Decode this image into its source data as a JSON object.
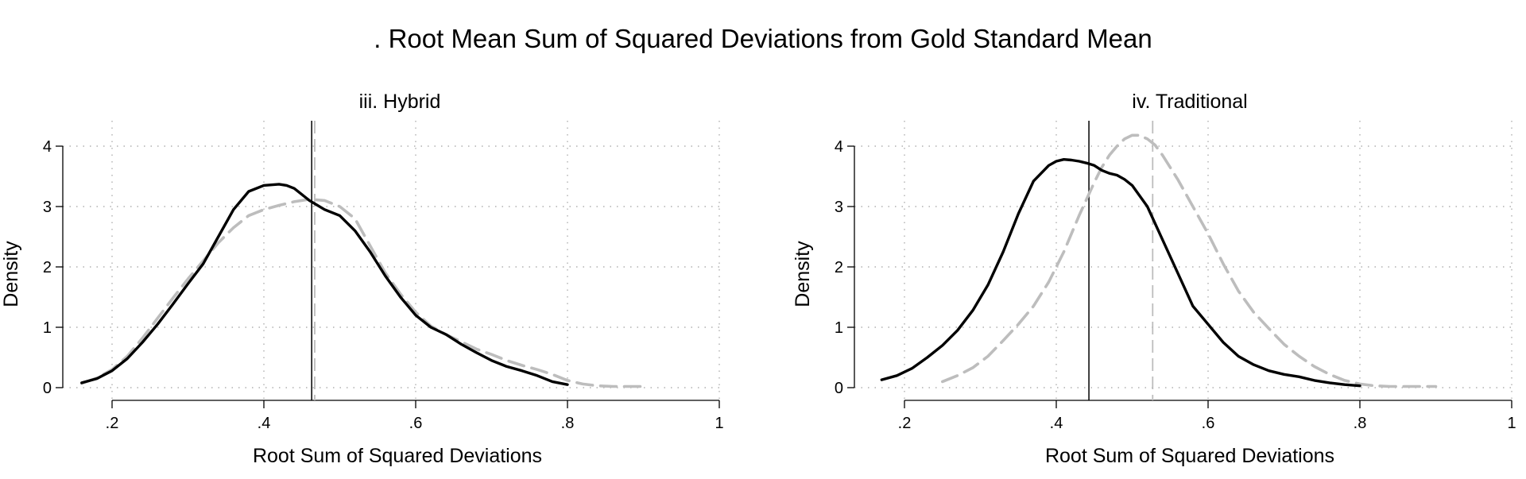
{
  "title": ". Root Mean Sum of Squared Deviations from Gold Standard Mean",
  "colors": {
    "solid": "#000000",
    "dashed": "#bdbdbd",
    "grid": "#b0b0b0",
    "vline_solid": "#000000",
    "vline_dashed": "#bdbdbd"
  },
  "chart_data": [
    {
      "type": "line",
      "title": "iii. Hybrid",
      "xlabel": "Root Sum of Squared Deviations",
      "ylabel": "Density",
      "xlim": [
        0.2,
        1.0
      ],
      "ylim": [
        0,
        4
      ],
      "xticks": [
        0.2,
        0.4,
        0.6,
        0.8,
        1.0
      ],
      "xtick_labels": [
        ".2",
        ".4",
        ".6",
        ".8",
        "1"
      ],
      "yticks": [
        0,
        1,
        2,
        3,
        4
      ],
      "ytick_labels": [
        "0",
        "1",
        "2",
        "3",
        "4"
      ],
      "grid": true,
      "vlines": [
        {
          "x": 0.463,
          "style": "solid"
        },
        {
          "x": 0.467,
          "style": "dashed"
        }
      ],
      "series": [
        {
          "style": "solid",
          "x": [
            0.16,
            0.18,
            0.2,
            0.22,
            0.24,
            0.26,
            0.28,
            0.3,
            0.32,
            0.34,
            0.36,
            0.38,
            0.4,
            0.42,
            0.43,
            0.44,
            0.45,
            0.46,
            0.48,
            0.5,
            0.52,
            0.54,
            0.56,
            0.58,
            0.6,
            0.62,
            0.64,
            0.66,
            0.68,
            0.7,
            0.72,
            0.74,
            0.76,
            0.78,
            0.8
          ],
          "y": [
            0.08,
            0.15,
            0.28,
            0.48,
            0.75,
            1.05,
            1.38,
            1.72,
            2.05,
            2.5,
            2.95,
            3.25,
            3.35,
            3.37,
            3.35,
            3.3,
            3.2,
            3.1,
            2.95,
            2.85,
            2.6,
            2.25,
            1.85,
            1.5,
            1.2,
            1.0,
            0.88,
            0.72,
            0.58,
            0.45,
            0.35,
            0.28,
            0.2,
            0.1,
            0.05
          ]
        },
        {
          "style": "dashed",
          "x": [
            0.16,
            0.18,
            0.2,
            0.22,
            0.24,
            0.26,
            0.28,
            0.3,
            0.32,
            0.34,
            0.36,
            0.38,
            0.4,
            0.42,
            0.44,
            0.46,
            0.48,
            0.5,
            0.52,
            0.54,
            0.56,
            0.58,
            0.6,
            0.62,
            0.64,
            0.66,
            0.68,
            0.7,
            0.72,
            0.74,
            0.76,
            0.78,
            0.8,
            0.82,
            0.84,
            0.86,
            0.88,
            0.9
          ],
          "y": [
            0.07,
            0.16,
            0.3,
            0.52,
            0.82,
            1.15,
            1.48,
            1.8,
            2.1,
            2.4,
            2.65,
            2.85,
            2.95,
            3.02,
            3.08,
            3.12,
            3.1,
            3.0,
            2.8,
            2.35,
            1.9,
            1.55,
            1.25,
            1.02,
            0.88,
            0.76,
            0.64,
            0.55,
            0.45,
            0.37,
            0.3,
            0.22,
            0.12,
            0.06,
            0.03,
            0.02,
            0.02,
            0.02
          ]
        }
      ]
    },
    {
      "type": "line",
      "title": "iv. Traditional",
      "xlabel": "Root Sum of Squared Deviations",
      "ylabel": "Density",
      "xlim": [
        0.2,
        1.0
      ],
      "ylim": [
        0,
        4
      ],
      "xticks": [
        0.2,
        0.4,
        0.6,
        0.8,
        1.0
      ],
      "xtick_labels": [
        ".2",
        ".4",
        ".6",
        ".8",
        "1"
      ],
      "yticks": [
        0,
        1,
        2,
        3,
        4
      ],
      "ytick_labels": [
        "0",
        "1",
        "2",
        "3",
        "4"
      ],
      "grid": true,
      "vlines": [
        {
          "x": 0.443,
          "style": "solid"
        },
        {
          "x": 0.527,
          "style": "dashed"
        }
      ],
      "series": [
        {
          "style": "solid",
          "x": [
            0.17,
            0.19,
            0.21,
            0.23,
            0.25,
            0.27,
            0.29,
            0.31,
            0.33,
            0.35,
            0.37,
            0.39,
            0.4,
            0.41,
            0.42,
            0.43,
            0.44,
            0.45,
            0.46,
            0.47,
            0.48,
            0.49,
            0.5,
            0.52,
            0.54,
            0.56,
            0.58,
            0.6,
            0.62,
            0.64,
            0.66,
            0.68,
            0.7,
            0.72,
            0.74,
            0.76,
            0.78,
            0.8
          ],
          "y": [
            0.13,
            0.2,
            0.32,
            0.5,
            0.7,
            0.95,
            1.28,
            1.7,
            2.25,
            2.88,
            3.42,
            3.68,
            3.75,
            3.78,
            3.77,
            3.75,
            3.72,
            3.68,
            3.6,
            3.55,
            3.52,
            3.45,
            3.35,
            3.0,
            2.45,
            1.9,
            1.35,
            1.05,
            0.75,
            0.52,
            0.38,
            0.28,
            0.22,
            0.18,
            0.12,
            0.08,
            0.05,
            0.03
          ]
        },
        {
          "style": "dashed",
          "x": [
            0.25,
            0.27,
            0.29,
            0.31,
            0.33,
            0.35,
            0.37,
            0.39,
            0.41,
            0.43,
            0.45,
            0.46,
            0.47,
            0.48,
            0.49,
            0.5,
            0.51,
            0.52,
            0.53,
            0.54,
            0.56,
            0.58,
            0.6,
            0.62,
            0.64,
            0.66,
            0.68,
            0.7,
            0.72,
            0.74,
            0.76,
            0.78,
            0.8,
            0.82,
            0.84,
            0.86,
            0.88,
            0.9
          ],
          "y": [
            0.1,
            0.2,
            0.33,
            0.52,
            0.78,
            1.05,
            1.35,
            1.75,
            2.25,
            2.85,
            3.4,
            3.65,
            3.85,
            4.0,
            4.12,
            4.18,
            4.18,
            4.12,
            4.02,
            3.85,
            3.45,
            3.0,
            2.55,
            2.05,
            1.6,
            1.25,
            0.98,
            0.72,
            0.52,
            0.35,
            0.22,
            0.12,
            0.06,
            0.03,
            0.02,
            0.02,
            0.02,
            0.02
          ]
        }
      ]
    }
  ]
}
